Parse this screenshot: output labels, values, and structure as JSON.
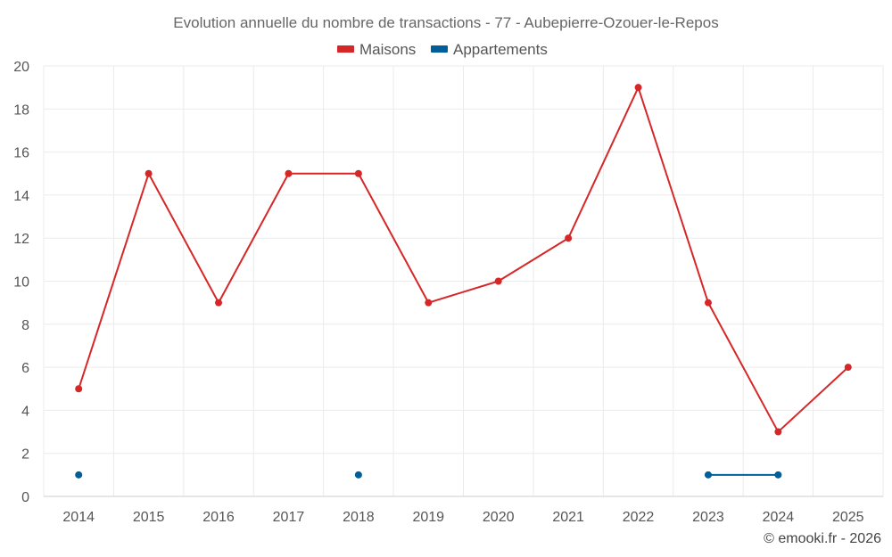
{
  "chart_data": {
    "type": "line",
    "title": "Evolution annuelle du nombre de transactions - 77 - Aubepierre-Ozouer-le-Repos",
    "xlabel": "",
    "ylabel": "",
    "categories": [
      "2014",
      "2015",
      "2016",
      "2017",
      "2018",
      "2019",
      "2020",
      "2021",
      "2022",
      "2023",
      "2024",
      "2025"
    ],
    "ylim": [
      0,
      20
    ],
    "yticks": [
      "0",
      "2",
      "4",
      "6",
      "8",
      "10",
      "12",
      "14",
      "16",
      "18",
      "20"
    ],
    "grid": true,
    "legend_position": "top-center",
    "series": [
      {
        "name": "Maisons",
        "color": "#d62728",
        "values": [
          5,
          15,
          9,
          15,
          15,
          9,
          10,
          12,
          19,
          9,
          3,
          6
        ]
      },
      {
        "name": "Appartements",
        "color": "#005f99",
        "values": [
          1,
          null,
          null,
          null,
          1,
          null,
          null,
          null,
          null,
          1,
          1,
          null
        ]
      }
    ]
  },
  "credit": "© emooki.fr - 2026"
}
